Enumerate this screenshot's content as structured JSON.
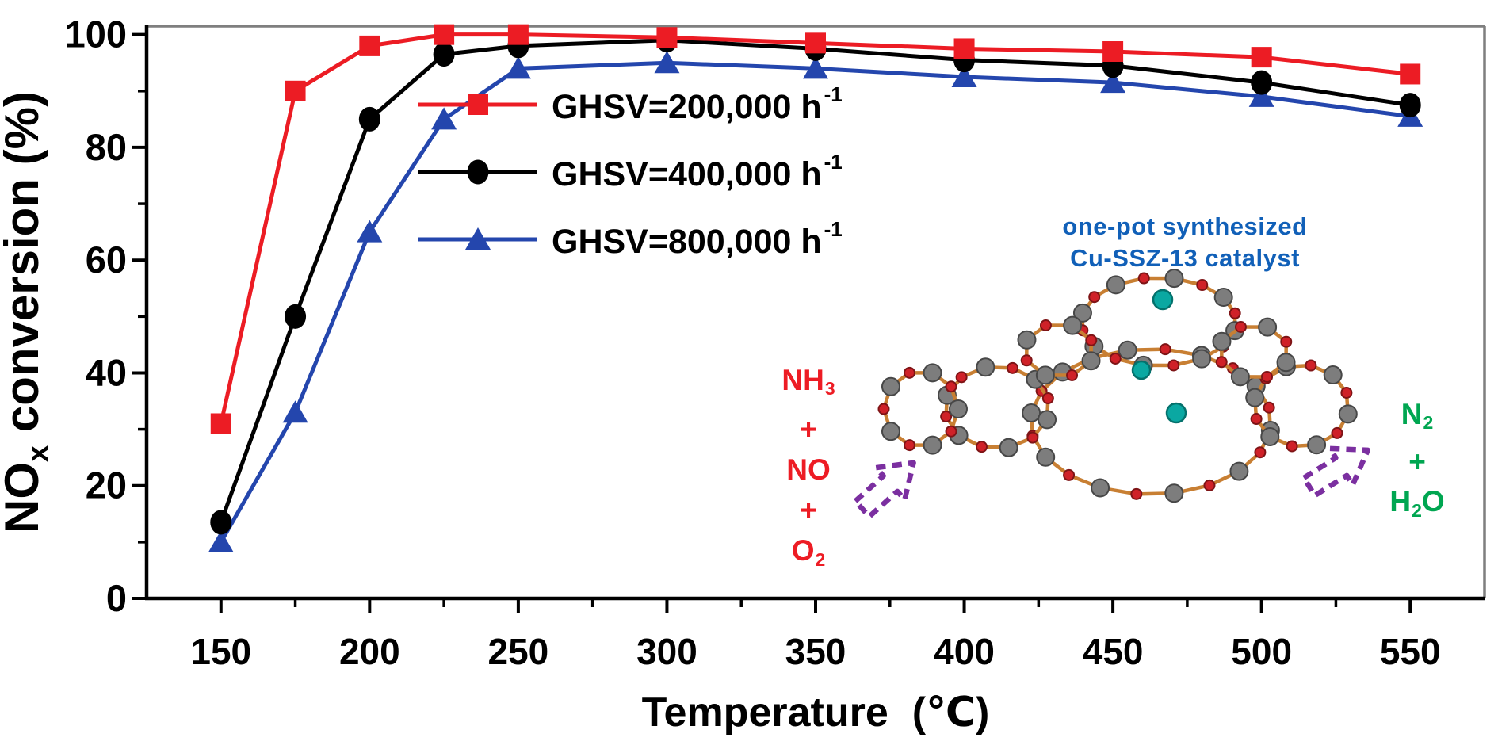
{
  "chart_data": {
    "type": "line",
    "title": "",
    "xlabel": "Temperature",
    "xlabel_unit": "(℃)",
    "ylabel_parts": [
      {
        "t": "NO"
      },
      {
        "s": "x"
      },
      {
        "t": " conversion (%)"
      }
    ],
    "xlim": [
      125,
      575
    ],
    "ylim": [
      0,
      101.5
    ],
    "x_ticks": [
      150,
      200,
      250,
      300,
      350,
      400,
      450,
      500,
      550
    ],
    "x_minor_ticks": [
      175,
      225,
      275,
      325,
      375,
      425,
      475,
      525
    ],
    "y_ticks": [
      0,
      20,
      40,
      60,
      80,
      100
    ],
    "y_minor_ticks": [
      10,
      30,
      50,
      70,
      90
    ],
    "grid": false,
    "legend_position": "inside upper-left-center",
    "x": [
      150,
      175,
      200,
      225,
      250,
      300,
      350,
      400,
      450,
      500,
      550
    ],
    "series": [
      {
        "name_parts": [
          {
            "t": "GHSV=200,000 h"
          },
          {
            "p": "-1"
          }
        ],
        "marker": "square",
        "color": "#ec1c24",
        "values": [
          31,
          90,
          98,
          100,
          100,
          99.5,
          98.5,
          97.5,
          97,
          96,
          93
        ]
      },
      {
        "name_parts": [
          {
            "t": "GHSV=400,000 h"
          },
          {
            "p": "-1"
          }
        ],
        "marker": "circle",
        "color": "#000000",
        "values": [
          13.5,
          50,
          85,
          96.5,
          98,
          99,
          97.5,
          95.5,
          94.5,
          91.5,
          87.5
        ]
      },
      {
        "name_parts": [
          {
            "t": "GHSV=800,000 h"
          },
          {
            "p": "-1"
          }
        ],
        "marker": "triangle",
        "color": "#2446ad",
        "values": [
          10,
          33,
          65,
          85,
          94,
          95,
          94,
          92.5,
          91.5,
          89,
          85.5
        ]
      }
    ],
    "axis_color": "#000000",
    "frame_color": "#7f7f7f"
  },
  "inset": {
    "caption_line1": "one-pot synthesized",
    "caption_line2": "Cu-SSZ-13 catalyst",
    "caption_color": "#1160b8",
    "reactants": [
      [
        {
          "t": "NH"
        },
        {
          "s": "3"
        }
      ],
      [
        {
          "t": "+"
        }
      ],
      [
        {
          "t": "NO"
        }
      ],
      [
        {
          "t": "+"
        }
      ],
      [
        {
          "t": "O"
        },
        {
          "s": "2"
        }
      ]
    ],
    "reactants_color": "#ed1c24",
    "products": [
      [
        {
          "t": "N"
        },
        {
          "s": "2"
        }
      ],
      [
        {
          "t": "+"
        }
      ],
      [
        {
          "t": "H"
        },
        {
          "s": "2"
        },
        {
          "t": "O"
        }
      ]
    ],
    "products_color": "#00a651",
    "arrow_color": "#7b2fa0",
    "structure_colors": {
      "bond": "#c87f33",
      "atom_si": "#7d7d7d",
      "atom_si_edge": "#474747",
      "atom_o": "#cf2128",
      "atom_o_edge": "#7e1416",
      "atom_cu": "#0aa8a2",
      "atom_cu_edge": "#04716c"
    }
  }
}
